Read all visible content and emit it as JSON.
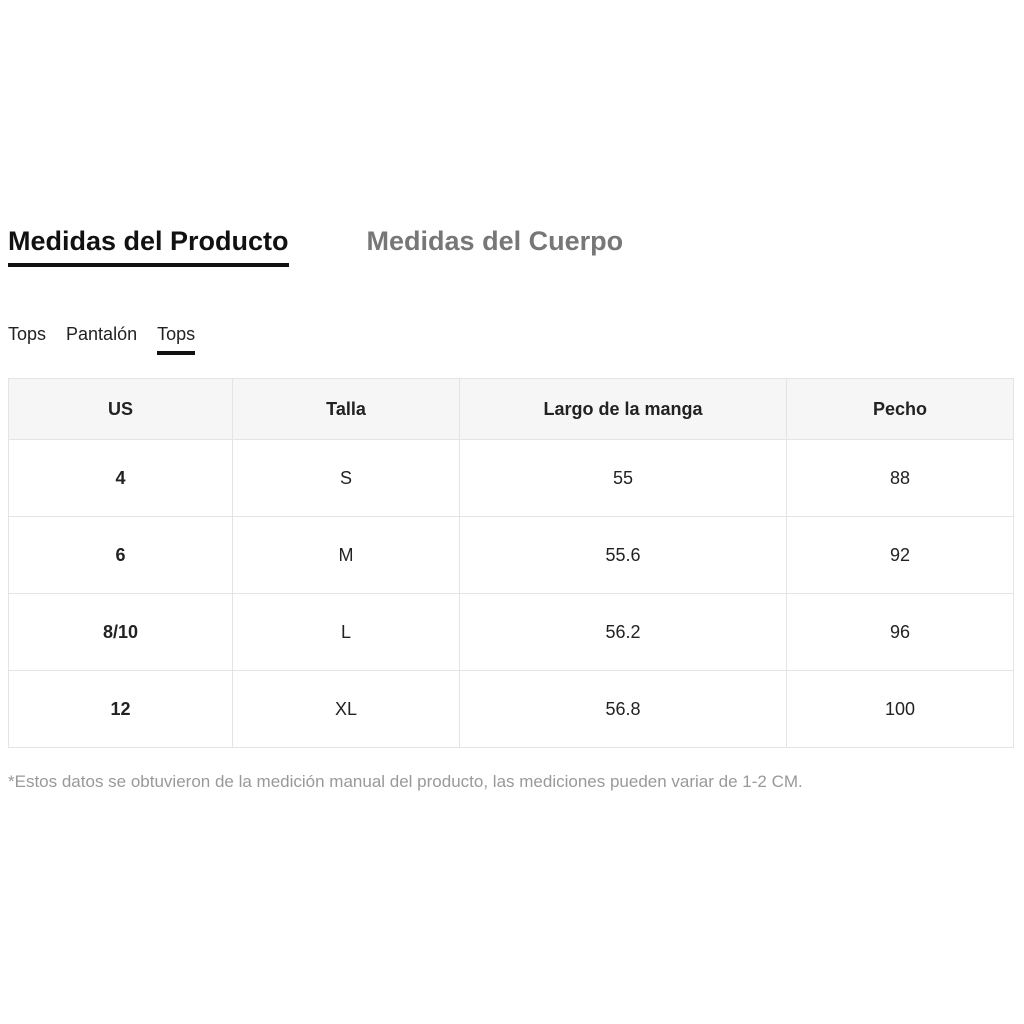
{
  "tabs": [
    {
      "label": "Medidas del Producto",
      "active": true
    },
    {
      "label": "Medidas del Cuerpo",
      "active": false
    }
  ],
  "subtabs": [
    {
      "label": "Tops"
    },
    {
      "label": "Pantalón"
    },
    {
      "label": "Tops",
      "active": true
    }
  ],
  "table": {
    "headers": [
      "US",
      "Talla",
      "Largo de la manga",
      "Pecho"
    ],
    "rows": [
      [
        "4",
        "S",
        "55",
        "88"
      ],
      [
        "6",
        "M",
        "55.6",
        "92"
      ],
      [
        "8/10",
        "L",
        "56.2",
        "96"
      ],
      [
        "12",
        "XL",
        "56.8",
        "100"
      ]
    ]
  },
  "note": "*Estos datos se obtuvieron de la medición manual del producto, las mediciones pueden variar de 1-2 CM."
}
